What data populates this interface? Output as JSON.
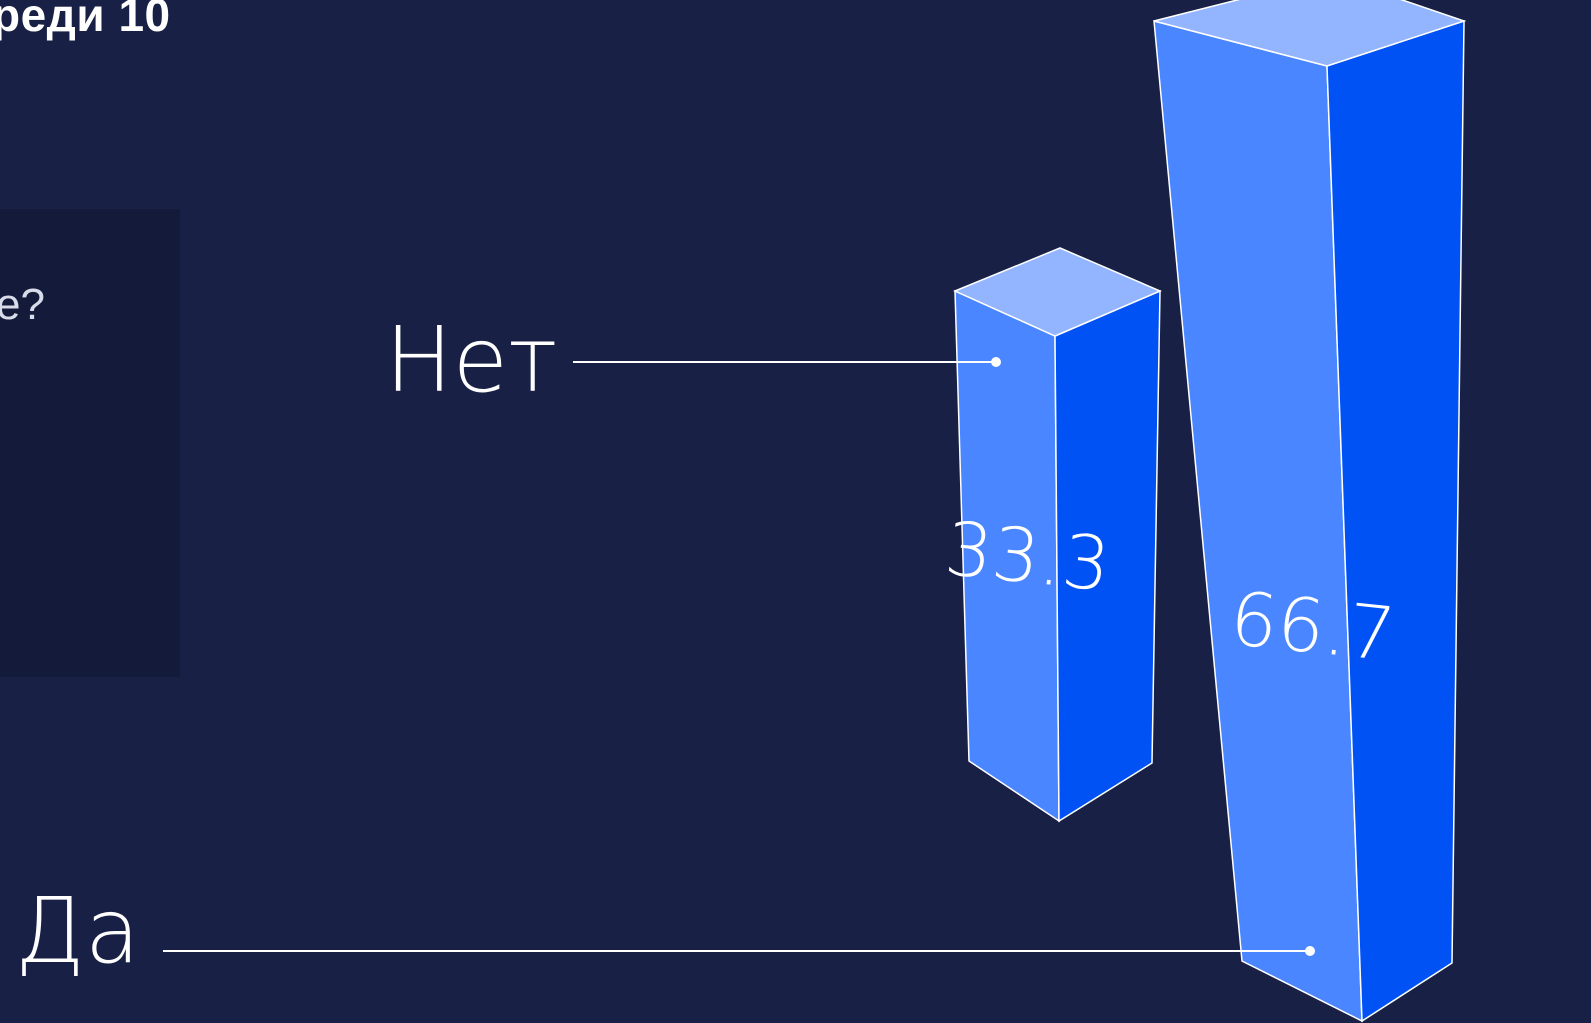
{
  "header": {
    "title": "реди 10"
  },
  "question": {
    "text": "е?"
  },
  "colors": {
    "background": "#182145",
    "bar_front": "#4a86ff",
    "bar_side": "#0052f5",
    "bar_top": "#93b4ff",
    "stroke": "#ffffff"
  },
  "chart_data": {
    "type": "bar",
    "categories": [
      "Нет",
      "Да"
    ],
    "values": [
      33.3,
      66.7
    ],
    "data_labels": [
      "33.3",
      "66.7"
    ]
  }
}
